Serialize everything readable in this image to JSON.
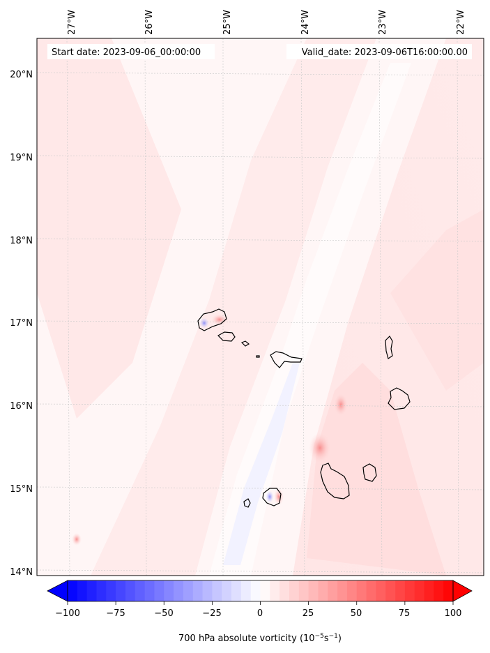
{
  "header": {
    "start_label": "Start date: 2023-09-06_00:00:00",
    "valid_label": "Valid_date: 2023-09-06T16:00:00.00"
  },
  "map": {
    "lon_labels": [
      "27°W",
      "26°W",
      "25°W",
      "24°W",
      "23°W",
      "22°W"
    ],
    "lat_labels": [
      "20°N",
      "19°N",
      "18°N",
      "17°N",
      "16°N",
      "15°N",
      "14°N"
    ],
    "grid": true,
    "colormap": "bwr",
    "colors": {
      "negative": "#0000ff",
      "zero": "#ffffff",
      "positive": "#ff0000",
      "coastline": "#000000"
    }
  },
  "colorbar": {
    "ticks": [
      "−100",
      "−75",
      "−50",
      "−25",
      "0",
      "25",
      "50",
      "75",
      "100"
    ],
    "range": [
      -100,
      100
    ],
    "label_prefix": "700 hPa absolute vorticity (10",
    "label_exp1": "−5",
    "label_mid": "s",
    "label_exp2": "−1",
    "label_suffix": ")"
  }
}
